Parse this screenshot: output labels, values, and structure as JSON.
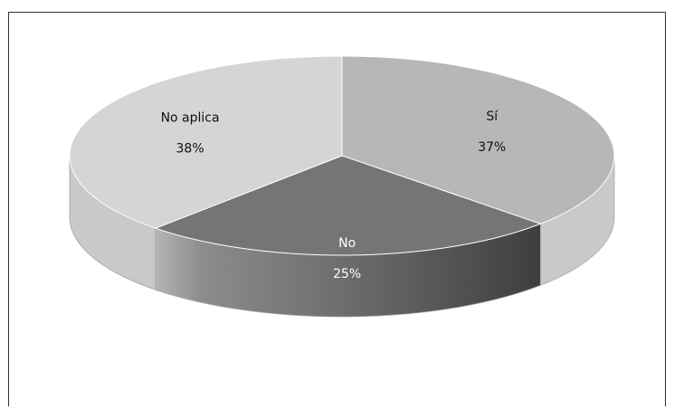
{
  "chart_data": {
    "type": "pie",
    "style": "3d",
    "title": "",
    "legend": "none",
    "slices": [
      {
        "label": "Sí",
        "value": 37,
        "percent_label": "37%",
        "color": "#b7b7b7"
      },
      {
        "label": "No",
        "value": 25,
        "percent_label": "25%",
        "color": "#757578"
      },
      {
        "label": "No aplica",
        "value": 38,
        "percent_label": "38%",
        "color": "#d5d5d5"
      }
    ]
  }
}
